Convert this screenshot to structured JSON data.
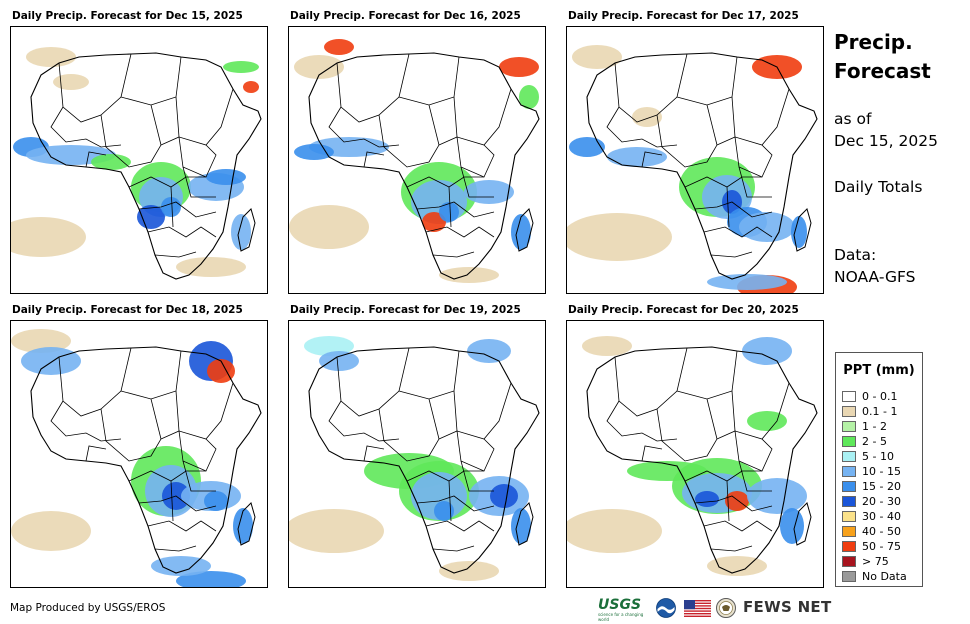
{
  "panels": [
    {
      "title": "Daily Precip. Forecast for Dec 15, 2025"
    },
    {
      "title": "Daily Precip. Forecast for Dec 16, 2025"
    },
    {
      "title": "Daily Precip. Forecast for Dec 17, 2025"
    },
    {
      "title": "Daily Precip. Forecast for Dec 18, 2025"
    },
    {
      "title": "Daily Precip. Forecast for Dec 19, 2025"
    },
    {
      "title": "Daily Precip. Forecast for Dec 20, 2025"
    }
  ],
  "side": {
    "title_line1": "Precip.",
    "title_line2": "Forecast",
    "asof_line1": "as of",
    "asof_line2": "Dec 15, 2025",
    "totals": "Daily Totals",
    "data_line1": "Data:",
    "data_line2": "NOAA-GFS"
  },
  "legend": {
    "title": "PPT (mm)",
    "items": [
      {
        "label": "0 - 0.1",
        "color": "#ffffff"
      },
      {
        "label": "0.1 - 1",
        "color": "#e9d7b3"
      },
      {
        "label": "1 - 2",
        "color": "#b5f2a6"
      },
      {
        "label": "2 - 5",
        "color": "#5fe85a"
      },
      {
        "label": "5 - 10",
        "color": "#aaf1f4"
      },
      {
        "label": "10 - 15",
        "color": "#76b3f2"
      },
      {
        "label": "15 - 20",
        "color": "#3a8fec"
      },
      {
        "label": "20 - 30",
        "color": "#1a55d8"
      },
      {
        "label": "30 - 40",
        "color": "#fbe28a"
      },
      {
        "label": "40 - 50",
        "color": "#f7a11b"
      },
      {
        "label": "50 - 75",
        "color": "#f03d10"
      },
      {
        "label": "> 75",
        "color": "#a7141e"
      },
      {
        "label": "No Data",
        "color": "#9a9a9a"
      }
    ]
  },
  "footer": {
    "credit": "Map Produced by USGS/EROS",
    "usgs": "USGS",
    "usgs_tagline": "science for a changing world",
    "fews": "FEWS NET"
  }
}
